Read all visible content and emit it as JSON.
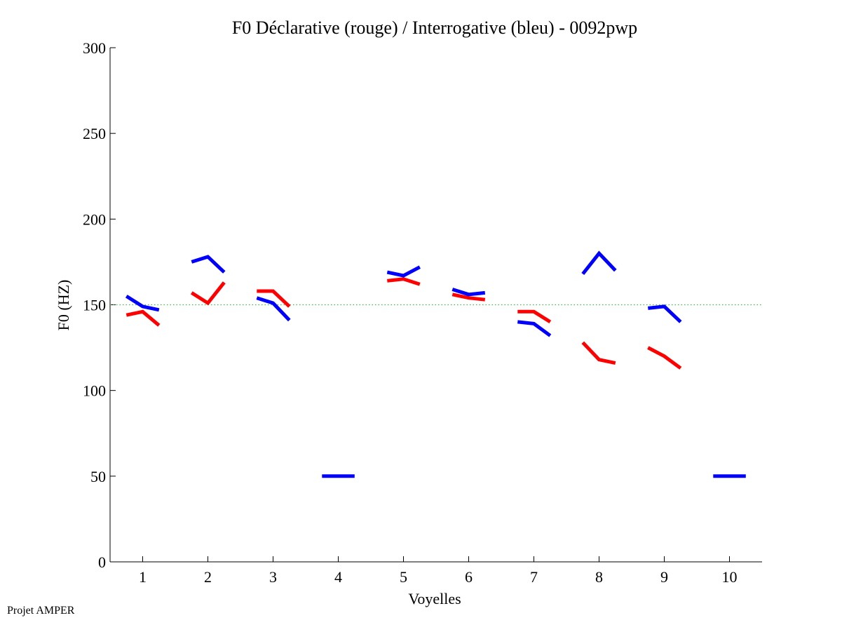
{
  "chart_data": {
    "type": "line",
    "title": "F0 Déclarative (rouge) / Interrogative (bleu) - 0092pwp",
    "xlabel": "Voyelles",
    "ylabel": "F0 (HZ)",
    "categories": [
      "1",
      "2",
      "3",
      "4",
      "5",
      "6",
      "7",
      "8",
      "9",
      "10"
    ],
    "yticks": [
      "0",
      "50",
      "100",
      "150",
      "200",
      "250",
      "300"
    ],
    "ylim": [
      0,
      300
    ],
    "xlim": [
      0.5,
      10.5
    ],
    "reference_line": {
      "y": 150,
      "style": "dotted",
      "color": "#3cb84a"
    },
    "series": [
      {
        "name": "Déclarative",
        "color": "#ff0000",
        "segments": [
          {
            "vowel": 1,
            "x": [
              0.75,
              1.0,
              1.25
            ],
            "y": [
              144,
              146,
              138
            ]
          },
          {
            "vowel": 2,
            "x": [
              1.75,
              2.0,
              2.25
            ],
            "y": [
              157,
              151,
              163
            ]
          },
          {
            "vowel": 3,
            "x": [
              2.75,
              3.0,
              3.25
            ],
            "y": [
              158,
              158,
              149
            ]
          },
          {
            "vowel": 5,
            "x": [
              4.75,
              5.0,
              5.25
            ],
            "y": [
              164,
              165,
              162
            ]
          },
          {
            "vowel": 6,
            "x": [
              5.75,
              6.0,
              6.25
            ],
            "y": [
              156,
              154,
              153
            ]
          },
          {
            "vowel": 7,
            "x": [
              6.75,
              7.0,
              7.25
            ],
            "y": [
              146,
              146,
              140
            ]
          },
          {
            "vowel": 8,
            "x": [
              7.75,
              8.0,
              8.25
            ],
            "y": [
              128,
              118,
              116
            ]
          },
          {
            "vowel": 9,
            "x": [
              8.75,
              9.0,
              9.25
            ],
            "y": [
              125,
              120,
              113
            ]
          }
        ]
      },
      {
        "name": "Interrogative",
        "color": "#0000ff",
        "segments": [
          {
            "vowel": 1,
            "x": [
              0.75,
              1.0,
              1.25
            ],
            "y": [
              155,
              149,
              147
            ]
          },
          {
            "vowel": 2,
            "x": [
              1.75,
              2.0,
              2.25
            ],
            "y": [
              175,
              178,
              169
            ]
          },
          {
            "vowel": 3,
            "x": [
              2.75,
              3.0,
              3.25
            ],
            "y": [
              154,
              151,
              141
            ]
          },
          {
            "vowel": 4,
            "x": [
              3.75,
              4.0,
              4.25
            ],
            "y": [
              50,
              50,
              50
            ]
          },
          {
            "vowel": 5,
            "x": [
              4.75,
              5.0,
              5.25
            ],
            "y": [
              169,
              167,
              172
            ]
          },
          {
            "vowel": 6,
            "x": [
              5.75,
              6.0,
              6.25
            ],
            "y": [
              159,
              156,
              157
            ]
          },
          {
            "vowel": 7,
            "x": [
              6.75,
              7.0,
              7.25
            ],
            "y": [
              140,
              139,
              132
            ]
          },
          {
            "vowel": 8,
            "x": [
              7.75,
              8.0,
              8.25
            ],
            "y": [
              168,
              180,
              170
            ]
          },
          {
            "vowel": 9,
            "x": [
              8.75,
              9.0,
              9.25
            ],
            "y": [
              148,
              149,
              140
            ]
          },
          {
            "vowel": 10,
            "x": [
              9.75,
              10.0,
              10.25
            ],
            "y": [
              50,
              50,
              50
            ]
          }
        ]
      }
    ]
  },
  "footer": {
    "note": "Projet AMPER"
  }
}
